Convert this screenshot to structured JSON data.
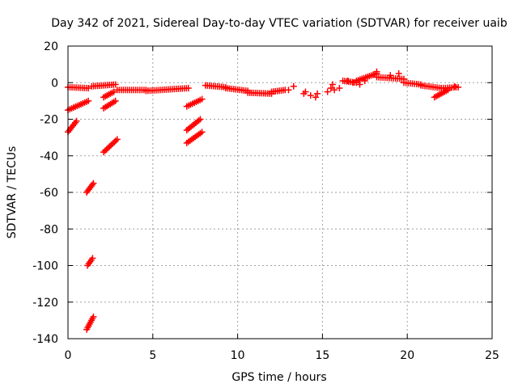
{
  "chart_data": {
    "type": "scatter",
    "title": "Day 342 of 2021, Sidereal Day-to-day VTEC variation (SDTVAR) for receiver uaib",
    "xlabel": "GPS time / hours",
    "ylabel": "SDTVAR / TECUs",
    "xlim": [
      0,
      25
    ],
    "ylim": [
      -140,
      20
    ],
    "xticks": [
      0,
      5,
      10,
      15,
      20,
      25
    ],
    "yticks": [
      20,
      0,
      -20,
      -40,
      -60,
      -80,
      -100,
      -120,
      -140
    ],
    "grid": true,
    "marker": "plus",
    "color": "#ff0000",
    "series": [
      {
        "name": "SDTVAR",
        "segments": [
          {
            "x": [
              0.0,
              1.2
            ],
            "y": [
              -2.5,
              -3
            ]
          },
          {
            "x": [
              0.0,
              1.2
            ],
            "y": [
              -15,
              -10
            ]
          },
          {
            "x": [
              0.0,
              0.5
            ],
            "y": [
              -27,
              -21
            ]
          },
          {
            "x": [
              1.1,
              1.5
            ],
            "y": [
              -60,
              -55
            ]
          },
          {
            "x": [
              1.15,
              1.45
            ],
            "y": [
              -100,
              -96
            ]
          },
          {
            "x": [
              1.1,
              1.5
            ],
            "y": [
              -135,
              -128
            ]
          },
          {
            "x": [
              1.4,
              2.8
            ],
            "y": [
              -2,
              -1
            ]
          },
          {
            "x": [
              2.1,
              2.7
            ],
            "y": [
              -8,
              -5
            ]
          },
          {
            "x": [
              2.1,
              2.8
            ],
            "y": [
              -14,
              -10
            ]
          },
          {
            "x": [
              2.1,
              2.9
            ],
            "y": [
              -38,
              -31
            ]
          },
          {
            "x": [
              2.9,
              4.6
            ],
            "y": [
              -4,
              -4
            ]
          },
          {
            "x": [
              4.6,
              7.1
            ],
            "y": [
              -4.5,
              -3
            ]
          },
          {
            "x": [
              7.0,
              7.9
            ],
            "y": [
              -13,
              -9
            ]
          },
          {
            "x": [
              7.0,
              7.8
            ],
            "y": [
              -26,
              -20
            ]
          },
          {
            "x": [
              7.0,
              7.9
            ],
            "y": [
              -33,
              -27
            ]
          },
          {
            "x": [
              8.1,
              9.3
            ],
            "y": [
              -1.5,
              -2.5
            ]
          },
          {
            "x": [
              9.3,
              10.6
            ],
            "y": [
              -3,
              -4.5
            ]
          },
          {
            "x": [
              10.6,
              12.0
            ],
            "y": [
              -5.5,
              -6
            ]
          },
          {
            "x": [
              12.0,
              12.8
            ],
            "y": [
              -5,
              -4
            ]
          },
          {
            "x": [
              16.2,
              17.0
            ],
            "y": [
              1,
              0
            ]
          },
          {
            "x": [
              17.0,
              18.2
            ],
            "y": [
              1,
              5
            ]
          },
          {
            "x": [
              18.2,
              19.8
            ],
            "y": [
              3,
              2
            ]
          },
          {
            "x": [
              19.8,
              20.8
            ],
            "y": [
              0,
              -1
            ]
          },
          {
            "x": [
              20.8,
              22.0
            ],
            "y": [
              -1.5,
              -3
            ]
          },
          {
            "x": [
              21.6,
              22.4
            ],
            "y": [
              -8,
              -4
            ]
          },
          {
            "x": [
              22.0,
              23.0
            ],
            "y": [
              -3,
              -2.5
            ]
          }
        ],
        "points": [
          {
            "x": 13.3,
            "y": -2
          },
          {
            "x": 13.0,
            "y": -4
          },
          {
            "x": 13.9,
            "y": -6
          },
          {
            "x": 14.0,
            "y": -5
          },
          {
            "x": 14.3,
            "y": -7
          },
          {
            "x": 14.6,
            "y": -8
          },
          {
            "x": 14.7,
            "y": -6
          },
          {
            "x": 15.3,
            "y": -5
          },
          {
            "x": 15.5,
            "y": -3
          },
          {
            "x": 15.7,
            "y": -4
          },
          {
            "x": 15.6,
            "y": -1
          },
          {
            "x": 16.0,
            "y": -3
          },
          {
            "x": 16.5,
            "y": 1
          },
          {
            "x": 16.8,
            "y": 0
          },
          {
            "x": 17.2,
            "y": -1
          },
          {
            "x": 17.5,
            "y": 1
          },
          {
            "x": 18.2,
            "y": 6
          },
          {
            "x": 19.0,
            "y": 4
          },
          {
            "x": 19.5,
            "y": 5
          },
          {
            "x": 22.5,
            "y": -3
          },
          {
            "x": 22.8,
            "y": -2
          }
        ]
      }
    ]
  }
}
